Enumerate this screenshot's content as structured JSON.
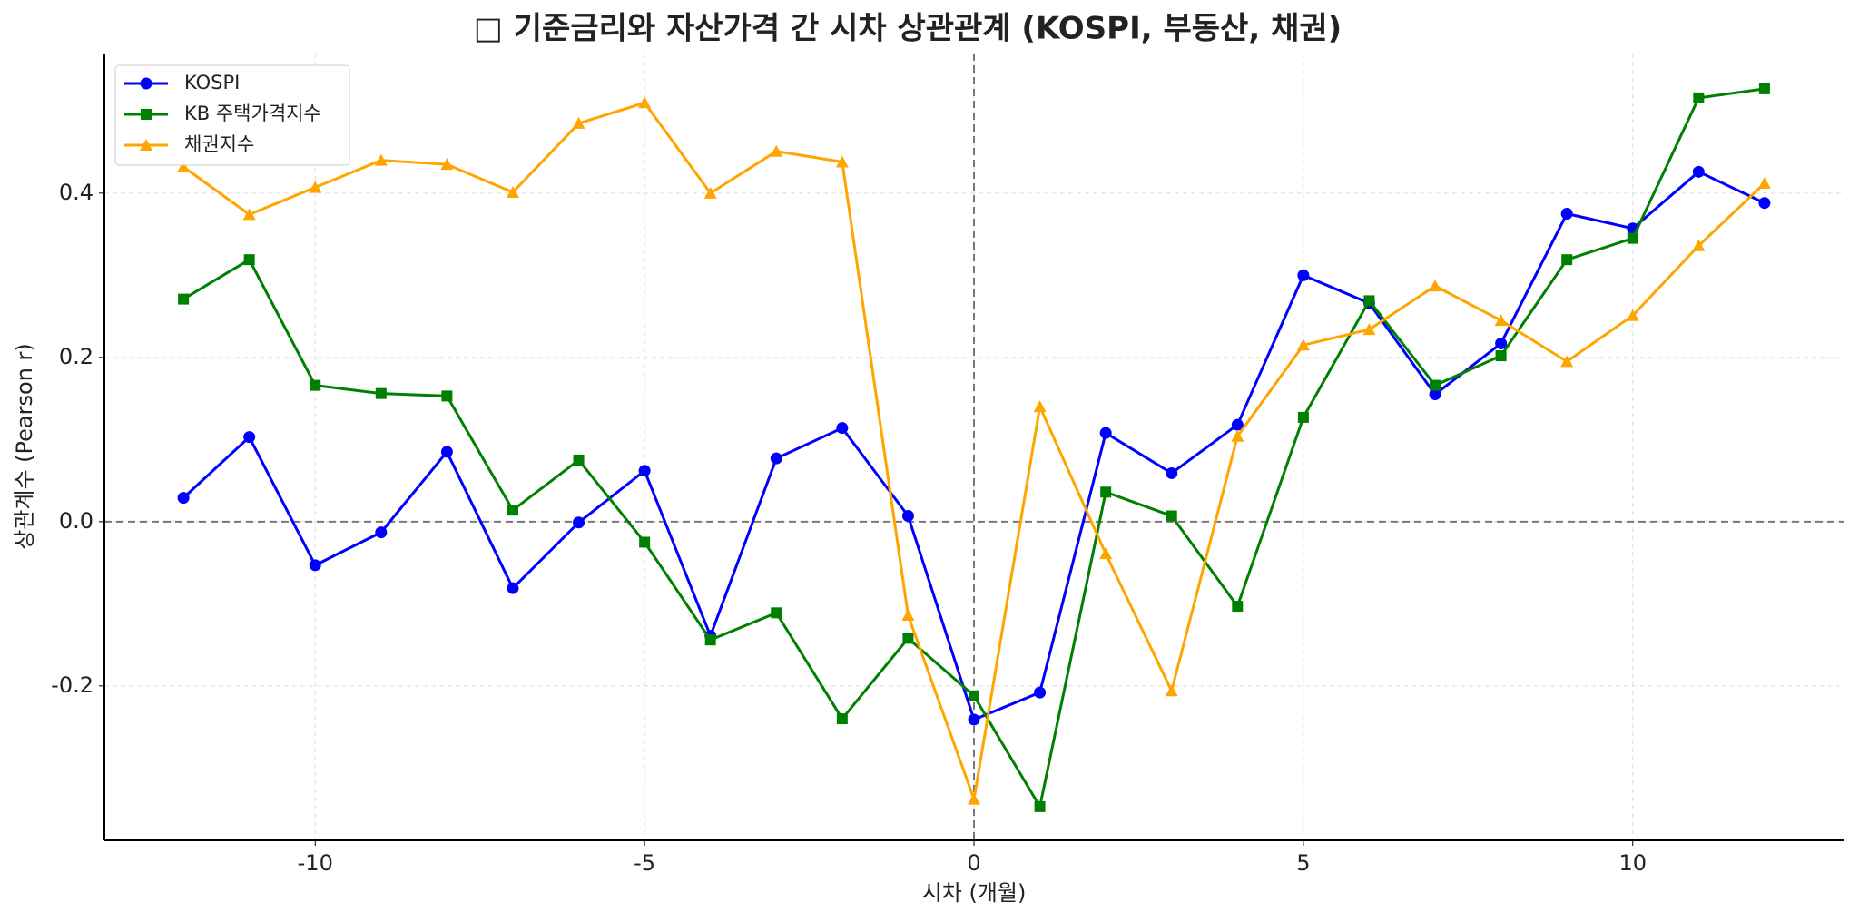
{
  "chart_data": {
    "type": "line",
    "title": "□ 기준금리와 자산가격 간 시차 상관관계 (KOSPI, 부동산, 채권)",
    "x_label": "시차 (개월)",
    "y_label": "상관계수 (Pearson r)",
    "x": [
      -12,
      -11,
      -10,
      -9,
      -8,
      -7,
      -6,
      -5,
      -4,
      -3,
      -2,
      -1,
      0,
      1,
      2,
      3,
      4,
      5,
      6,
      7,
      8,
      9,
      10,
      11,
      12
    ],
    "series": [
      {
        "name": "KOSPI",
        "color": "#0000ff",
        "marker": "circle",
        "values": [
          0.029,
          0.103,
          -0.053,
          -0.013,
          0.085,
          -0.081,
          -0.001,
          0.062,
          -0.139,
          0.077,
          0.114,
          0.007,
          -0.241,
          -0.208,
          0.108,
          0.059,
          0.118,
          0.3,
          0.266,
          0.155,
          0.217,
          0.375,
          0.357,
          0.426,
          0.388
        ]
      },
      {
        "name": "KB 주택가격지수",
        "color": "#008000",
        "marker": "square",
        "values": [
          0.271,
          0.319,
          0.166,
          0.156,
          0.153,
          0.014,
          0.075,
          -0.025,
          -0.144,
          -0.111,
          -0.24,
          -0.142,
          -0.212,
          -0.347,
          0.036,
          0.007,
          -0.103,
          0.127,
          0.269,
          0.166,
          0.202,
          0.319,
          0.345,
          0.516,
          0.527
        ]
      },
      {
        "name": "채권지수",
        "color": "#ffa500",
        "marker": "triangle",
        "values": [
          0.432,
          0.374,
          0.407,
          0.44,
          0.435,
          0.401,
          0.485,
          0.51,
          0.4,
          0.451,
          0.438,
          -0.114,
          -0.338,
          0.14,
          -0.039,
          -0.206,
          0.104,
          0.215,
          0.234,
          0.287,
          0.245,
          0.195,
          0.251,
          0.336,
          0.412
        ]
      }
    ],
    "xlim": [
      -13.2,
      13.2
    ],
    "ylim": [
      -0.388,
      0.57
    ],
    "xticks": [
      -10,
      -5,
      0,
      5,
      10
    ],
    "yticks": [
      -0.2,
      {
        "value": 0,
        "label": "0.0"
      },
      0.2,
      0.4
    ],
    "grid": true,
    "legend": "upper left"
  }
}
